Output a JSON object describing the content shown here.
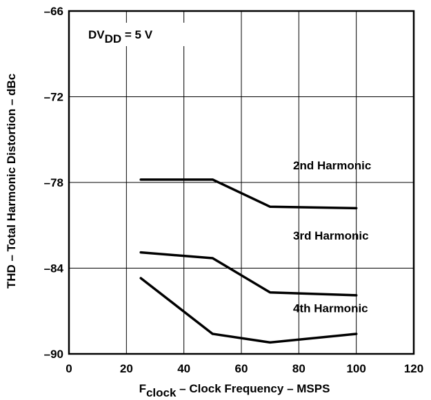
{
  "chart_data": {
    "type": "line",
    "title": "",
    "xlabel": {
      "main": "F",
      "sub": "clock",
      "rest": " – Clock Frequency – MSPS"
    },
    "ylabel": "THD – Total Harmonic Distortion – dBc",
    "xlim": [
      0,
      120
    ],
    "ylim": [
      -90,
      -66
    ],
    "xticks": [
      0,
      20,
      40,
      60,
      80,
      100,
      120
    ],
    "yticks": [
      -66,
      -72,
      -78,
      -84,
      -90
    ],
    "xtick_labels": [
      "0",
      "20",
      "40",
      "60",
      "80",
      "100",
      "120"
    ],
    "ytick_labels": [
      "–66",
      "–72",
      "–78",
      "–84",
      "–90"
    ],
    "grid": true,
    "annotation": {
      "main": "DV",
      "sub": "DD",
      "rest": " = 5 V"
    },
    "series": [
      {
        "name": "2nd Harmonic",
        "x": [
          25,
          50,
          70,
          100
        ],
        "y": [
          -77.8,
          -77.8,
          -79.7,
          -79.8
        ],
        "label_pos": [
          78,
          -76.8
        ]
      },
      {
        "name": "3rd Harmonic",
        "x": [
          25,
          50,
          70,
          100
        ],
        "y": [
          -82.9,
          -83.3,
          -85.7,
          -85.9
        ],
        "label_pos": [
          78,
          -81.7
        ]
      },
      {
        "name": "4th Harmonic",
        "x": [
          25,
          50,
          70,
          100
        ],
        "y": [
          -84.7,
          -88.6,
          -89.2,
          -88.6
        ],
        "label_pos": [
          78,
          -86.8
        ]
      }
    ]
  }
}
